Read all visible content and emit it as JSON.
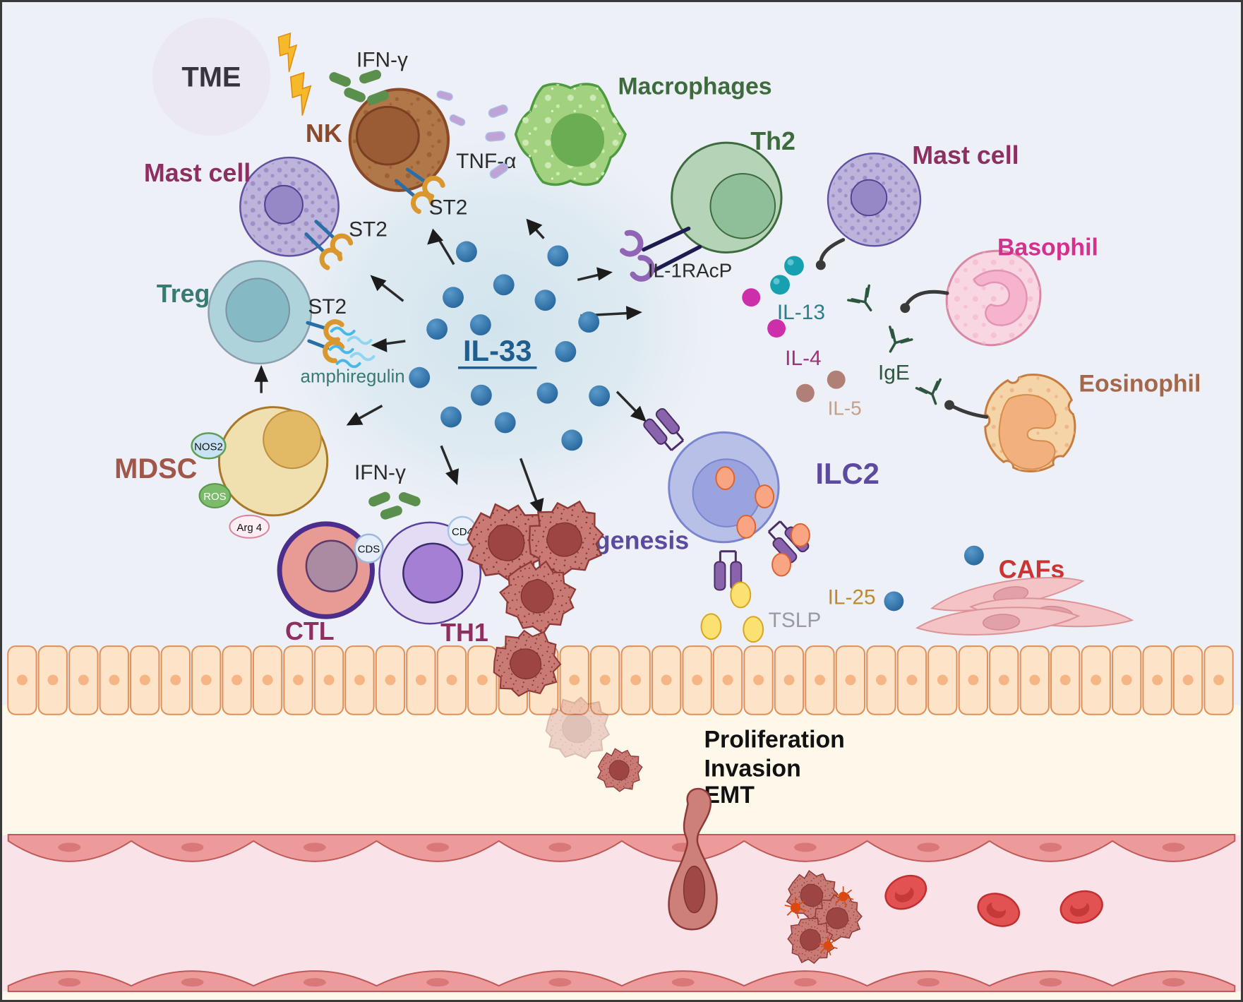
{
  "diagram_title": "TME",
  "labels": {
    "tme": "TME",
    "ifn_gamma": "IFN-γ",
    "nk": "NK",
    "mast_cell": "Mast cell",
    "st2": "ST2",
    "treg": "Treg",
    "amphiregulin": "amphiregulin",
    "mdsc": "MDSC",
    "nos2": "NOS2",
    "ros": "ROS",
    "arg4": "Arg 4",
    "ctl": "CTL",
    "th1": "TH1",
    "cds": "CDS",
    "cd4": "CD4",
    "il33": "IL-33",
    "tnf_alpha": "TNF-α",
    "macrophages": "Macrophages",
    "th2": "Th2",
    "il1racp": "IL-1RAcP",
    "il13": "IL-13",
    "il4": "IL-4",
    "il5": "IL-5",
    "ige": "IgE",
    "basophil": "Basophil",
    "eosinophil": "Eosinophil",
    "ilc2": "ILC2",
    "tumorigenesis": "Tumorigenesis",
    "il25": "IL-25",
    "tslp": "TSLP",
    "cafs": "CAFs",
    "proliferation": "Proliferation",
    "invasion": "Invasion",
    "emt": "EMT"
  },
  "colors": {
    "background": "#edf0f7",
    "il33_dot": "#2d72ab",
    "il33_label": "#1f5e8f",
    "nk_label": "#8c4a2a",
    "mast_label": "#8e2f62",
    "treg_label": "#3a7a72",
    "mdsc_label": "#a1564a",
    "macrophage_label": "#3e6b3e",
    "th2_label": "#3e6b3e",
    "il13_label": "#2e7d8a",
    "il4_label": "#a0307c",
    "il5_label": "#c5a089",
    "ige_label": "#2d5540",
    "basophil_label": "#d6308f",
    "eosinophil_label": "#a5674a",
    "ilc2_label": "#5b4a9e",
    "tumorigenesis_label": "#5b4a9e",
    "il25_label": "#bd8a2e",
    "tslp_label": "#9a9aa2",
    "cafs_label": "#cc3434",
    "epithelium_fill": "#fde3c8",
    "vessel_fill": "#fae3e8",
    "stroma_fill": "#fdf8ea",
    "tumor_cell": "#c97a74"
  }
}
